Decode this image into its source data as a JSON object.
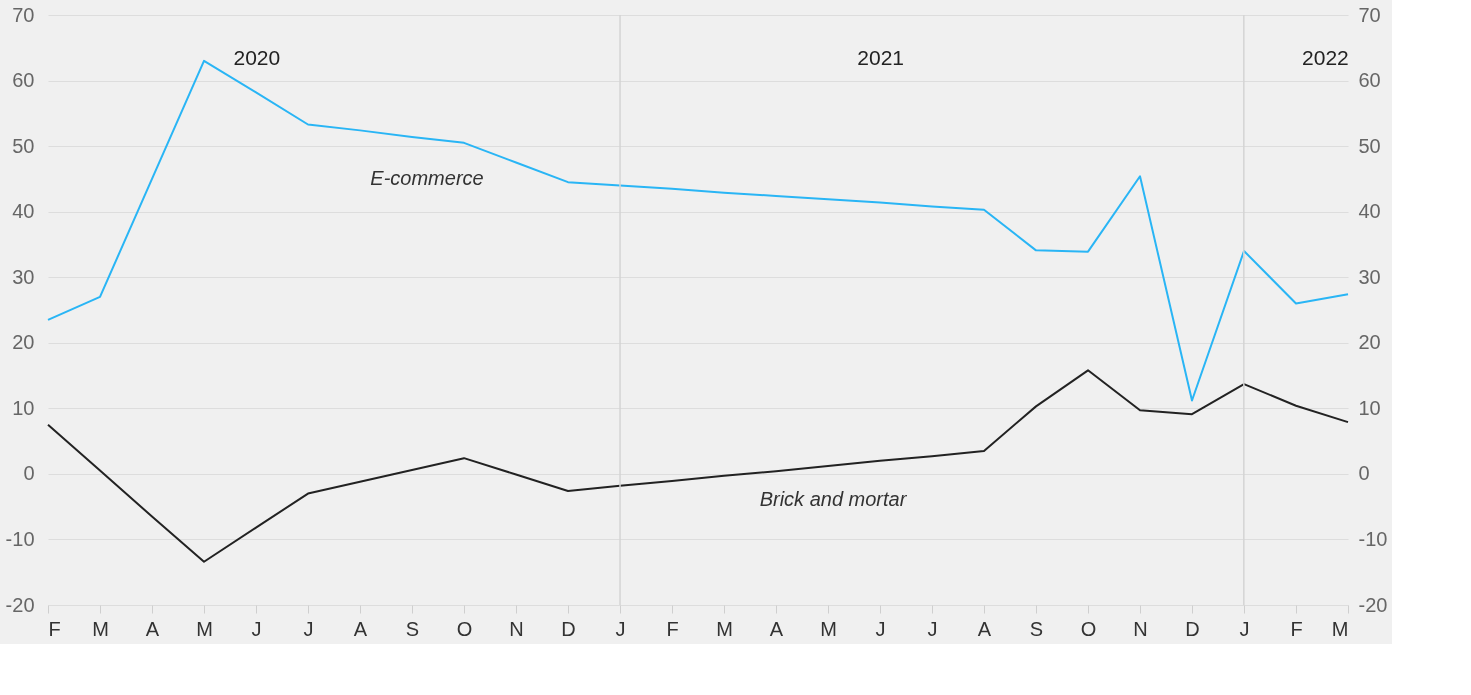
{
  "chart_data": {
    "type": "line",
    "categories": [
      "F",
      "M",
      "A",
      "M",
      "J",
      "J",
      "A",
      "S",
      "O",
      "N",
      "D",
      "J",
      "F",
      "M",
      "A",
      "M",
      "J",
      "J",
      "A",
      "S",
      "O",
      "N",
      "D",
      "J",
      "F",
      "M"
    ],
    "x2lim": [
      2020.083,
      2022.167
    ],
    "x2ticks": [
      {
        "value": 2020.417,
        "label": "2020"
      },
      {
        "value": 2021.417,
        "label": "2021"
      },
      {
        "value": 2022.13,
        "label": "2022"
      }
    ],
    "ylim": [
      -20,
      70
    ],
    "yticks": [
      -20,
      -10,
      0,
      10,
      20,
      30,
      40,
      50,
      60,
      70
    ],
    "y2lim": [
      -20,
      70
    ],
    "y2ticks": [
      -20,
      -10,
      0,
      10,
      20,
      30,
      40,
      50,
      60,
      70
    ],
    "grid": "y",
    "marker": "none",
    "line_style": "solid",
    "ref_lines": [
      {
        "axis": "x2",
        "value": 2021,
        "color": "#d4d4d4"
      },
      {
        "axis": "x2",
        "value": 2022,
        "color": "#d4d4d4"
      }
    ],
    "series": [
      {
        "name": "E-commerce",
        "color": "#29b5f5",
        "values": [
          23.5,
          27,
          45,
          63,
          58.2,
          53.3,
          52.4,
          51.4,
          50.5,
          47.5,
          44.5,
          44.0,
          43.5,
          42.9,
          42.4,
          41.9,
          41.4,
          40.8,
          40.3,
          34.1,
          33.9,
          45.4,
          11.2,
          34,
          26,
          27.4
        ]
      },
      {
        "name": "Brick and mortar",
        "color": "#222222",
        "values": [
          7.5,
          0.5,
          -6.5,
          -13.4,
          -8.2,
          -3,
          -1.2,
          0.6,
          2.4,
          -0.1,
          -2.6,
          -1.8,
          -1.1,
          -0.3,
          0.4,
          1.2,
          2.0,
          2.7,
          3.5,
          10.3,
          15.8,
          9.7,
          9.1,
          13.7,
          10.4,
          7.9
        ]
      }
    ]
  }
}
